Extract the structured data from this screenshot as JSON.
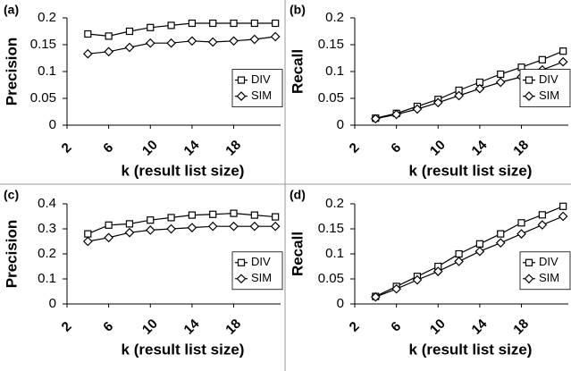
{
  "chart_data": [
    {
      "type": "line",
      "panel_label": "(a)",
      "xlabel": "k (result list size)",
      "ylabel": "Precision",
      "x": [
        4,
        6,
        8,
        10,
        12,
        14,
        16,
        18,
        20,
        22
      ],
      "xlim": [
        2,
        22.5
      ],
      "xticks": [
        2,
        6,
        10,
        14,
        18
      ],
      "ylim": [
        0,
        0.2
      ],
      "yticks": [
        0,
        0.05,
        0.1,
        0.15,
        0.2
      ],
      "legend": "right",
      "series": [
        {
          "name": "DIV",
          "color": "#000000",
          "marker": "square",
          "values": [
            0.17,
            0.166,
            0.175,
            0.182,
            0.186,
            0.19,
            0.19,
            0.19,
            0.19,
            0.19
          ]
        },
        {
          "name": "SIM",
          "color": "#000000",
          "marker": "diamond",
          "values": [
            0.133,
            0.137,
            0.145,
            0.153,
            0.153,
            0.157,
            0.155,
            0.157,
            0.16,
            0.165
          ]
        }
      ]
    },
    {
      "type": "line",
      "panel_label": "(b)",
      "xlabel": "k (result list size)",
      "ylabel": "Recall",
      "x": [
        4,
        6,
        8,
        10,
        12,
        14,
        16,
        18,
        20,
        22
      ],
      "xlim": [
        2,
        22.5
      ],
      "xticks": [
        2,
        6,
        10,
        14,
        18
      ],
      "ylim": [
        0,
        0.2
      ],
      "yticks": [
        0,
        0.05,
        0.1,
        0.15,
        0.2
      ],
      "legend": "right",
      "series": [
        {
          "name": "DIV",
          "color": "#000000",
          "marker": "square",
          "values": [
            0.013,
            0.022,
            0.035,
            0.048,
            0.065,
            0.08,
            0.095,
            0.108,
            0.122,
            0.138
          ]
        },
        {
          "name": "SIM",
          "color": "#000000",
          "marker": "diamond",
          "values": [
            0.012,
            0.02,
            0.03,
            0.042,
            0.055,
            0.068,
            0.08,
            0.09,
            0.103,
            0.118
          ]
        }
      ]
    },
    {
      "type": "line",
      "panel_label": "(c)",
      "xlabel": "k (result list size)",
      "ylabel": "Precision",
      "x": [
        4,
        6,
        8,
        10,
        12,
        14,
        16,
        18,
        20,
        22
      ],
      "xlim": [
        2,
        22.5
      ],
      "xticks": [
        2,
        6,
        10,
        14,
        18
      ],
      "ylim": [
        0,
        0.4
      ],
      "yticks": [
        0,
        0.1,
        0.2,
        0.3,
        0.4
      ],
      "legend": "right",
      "series": [
        {
          "name": "DIV",
          "color": "#000000",
          "marker": "square",
          "values": [
            0.28,
            0.315,
            0.32,
            0.335,
            0.345,
            0.355,
            0.358,
            0.362,
            0.355,
            0.348
          ]
        },
        {
          "name": "SIM",
          "color": "#000000",
          "marker": "diamond",
          "values": [
            0.25,
            0.265,
            0.285,
            0.295,
            0.3,
            0.305,
            0.31,
            0.31,
            0.31,
            0.31
          ]
        }
      ]
    },
    {
      "type": "line",
      "panel_label": "(d)",
      "xlabel": "k (result list size)",
      "ylabel": "Recall",
      "x": [
        4,
        6,
        8,
        10,
        12,
        14,
        16,
        18,
        20,
        22
      ],
      "xlim": [
        2,
        22.5
      ],
      "xticks": [
        2,
        6,
        10,
        14,
        18
      ],
      "ylim": [
        0,
        0.2
      ],
      "yticks": [
        0,
        0.05,
        0.1,
        0.15,
        0.2
      ],
      "legend": "right",
      "series": [
        {
          "name": "DIV",
          "color": "#000000",
          "marker": "square",
          "values": [
            0.015,
            0.035,
            0.055,
            0.075,
            0.1,
            0.12,
            0.14,
            0.162,
            0.178,
            0.195
          ]
        },
        {
          "name": "SIM",
          "color": "#000000",
          "marker": "diamond",
          "values": [
            0.014,
            0.03,
            0.048,
            0.065,
            0.085,
            0.105,
            0.122,
            0.14,
            0.158,
            0.175
          ]
        }
      ]
    }
  ]
}
